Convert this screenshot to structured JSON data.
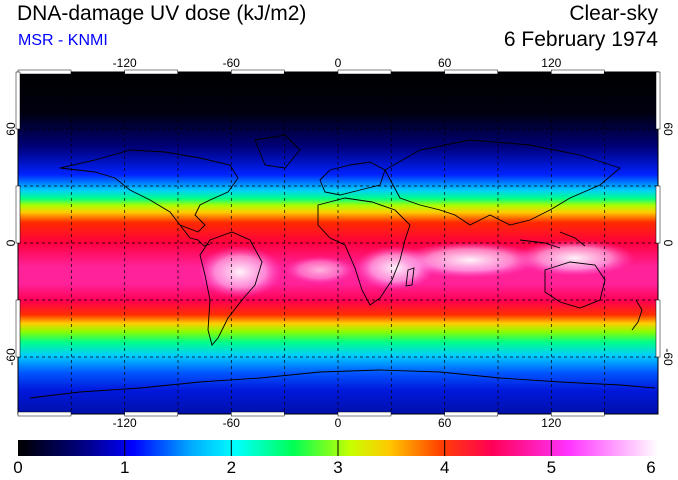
{
  "header": {
    "title": "DNA-damage UV dose (kJ/m2)",
    "subtitle": "MSR - KNMI",
    "subtitle_color": "#0000ff",
    "sky": "Clear-sky",
    "date": "6 February 1974"
  },
  "map": {
    "lon_labels": [
      "-120",
      "-60",
      "0",
      "60",
      "120"
    ],
    "lat_labels_left": [
      "60",
      "0",
      "-60"
    ],
    "lat_labels_right": [
      "60",
      "0",
      "-60"
    ],
    "gridlines": "dashed",
    "projection": "equirectangular"
  },
  "colorbar": {
    "labels": [
      "0",
      "1",
      "2",
      "3",
      "4",
      "5",
      "6"
    ],
    "min": 0,
    "max": 6,
    "colors": [
      "#000000",
      "#00007f",
      "#0000ff",
      "#00aaff",
      "#00ffff",
      "#00ff55",
      "#c8ff00",
      "#ffc800",
      "#ff4000",
      "#ff0055",
      "#ff33ff",
      "#ffffff"
    ]
  }
}
